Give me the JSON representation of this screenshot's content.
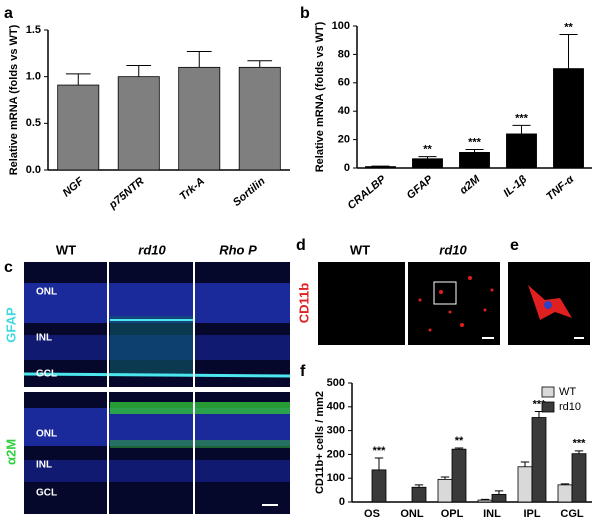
{
  "chart_data": [
    {
      "type": "bar",
      "panel": "a",
      "ylabel": "Relative mRNA (folds vs WT)",
      "categories": [
        "NGF",
        "p75NTR",
        "Trk-A",
        "Sortilin"
      ],
      "values": [
        0.91,
        1.0,
        1.1,
        1.1
      ],
      "errors": [
        0.12,
        0.12,
        0.17,
        0.07
      ],
      "color": "#7f7f7f",
      "ylim": [
        0,
        1.5
      ],
      "yticks": [
        {
          "value": 0,
          "label": "0.0"
        },
        0.5,
        {
          "value": 1,
          "label": "1.0"
        },
        1.5
      ]
    },
    {
      "type": "bar",
      "panel": "b",
      "ylabel": "Relative mRNA (folds vs WT)",
      "categories": [
        "CRALBP",
        "GFAP",
        "α2M",
        "IL-1β",
        "TNF-α"
      ],
      "values": [
        1,
        6.5,
        11,
        24,
        70
      ],
      "errors": [
        0.3,
        1.5,
        2,
        6,
        24
      ],
      "color": "#000000",
      "annotations": [
        null,
        "**",
        "***",
        "***",
        "**"
      ],
      "ylim": [
        0,
        100
      ],
      "yticks": [
        0,
        20,
        40,
        60,
        80,
        100
      ]
    },
    {
      "type": "bar",
      "panel": "f",
      "ylabel": "CD11b+ cells / mm2",
      "categories": [
        "OS",
        "ONL",
        "OPL",
        "INL",
        "IPL",
        "CGL"
      ],
      "series": [
        {
          "name": "WT",
          "color": "#d9d9d9",
          "values": [
            0,
            0,
            95,
            8,
            148,
            72
          ],
          "errors": [
            0,
            0,
            10,
            3,
            20,
            4
          ],
          "annotations": [
            null,
            null,
            null,
            null,
            null,
            null
          ]
        },
        {
          "name": "rd10",
          "color": "#3a3a3a",
          "values": [
            135,
            62,
            222,
            32,
            355,
            203
          ],
          "errors": [
            50,
            10,
            5,
            15,
            25,
            12
          ],
          "annotations": [
            "***",
            null,
            "**",
            null,
            "***",
            "***"
          ]
        }
      ],
      "ylim": [
        0,
        500
      ],
      "yticks": [
        0,
        100,
        200,
        300,
        400,
        500
      ],
      "legend": "upper right"
    }
  ],
  "panels": {
    "c": {
      "label": "c",
      "columns": [
        "WT",
        "rd10",
        "Rho P"
      ],
      "rows": [
        {
          "stain": "GFAP",
          "layers": [
            "ONL",
            "INL",
            "GCL"
          ]
        },
        {
          "stain": "α2M",
          "layers": [
            "ONL",
            "INL",
            "GCL"
          ]
        }
      ]
    },
    "d": {
      "label": "d",
      "columns": [
        "WT",
        "rd10"
      ],
      "stain": "CD11b"
    },
    "e": {
      "label": "e"
    }
  }
}
